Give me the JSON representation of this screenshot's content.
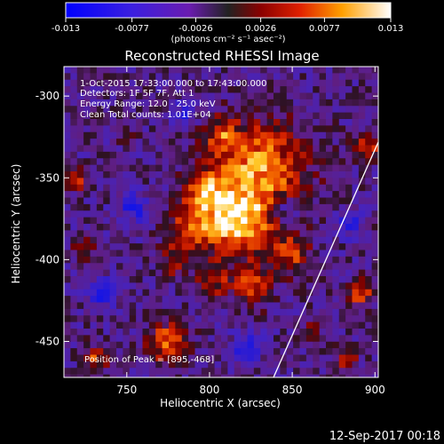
{
  "colorbar": {
    "tick_labels": [
      "-0.013",
      "-0.0077",
      "-0.0026",
      "0.0026",
      "0.0077",
      "0.013"
    ],
    "units_label": "(photons cm⁻² s⁻¹ asec⁻²)",
    "min": -0.013,
    "max": 0.013
  },
  "title": "Reconstructed RHESSI Image",
  "info": {
    "line1": "1-Oct-2015 17:33:00.000 to 17:43:00.000",
    "line2": "Detectors: 1F 5F 7F, Att 1",
    "line3": "Energy Range: 12.0 - 25.0 keV",
    "line4": "Clean    Total counts: 1.01E+04"
  },
  "peak_label": "Position of Peak = [895,-468]",
  "xaxis": {
    "label": "Heliocentric X (arcsec)",
    "range": [
      712,
      902
    ],
    "ticks": [
      750,
      800,
      850,
      900
    ],
    "tick_labels": [
      "750",
      "800",
      "850",
      "900"
    ]
  },
  "yaxis": {
    "label": "Heliocentric Y (arcsec)",
    "range": [
      -472,
      -282
    ],
    "ticks": [
      -300,
      -350,
      -400,
      -450
    ],
    "tick_labels": [
      "-300",
      "-350",
      "-400",
      "-450"
    ]
  },
  "timestamp": "12-Sep-2017 00:18",
  "colors": {
    "background": "#000000",
    "text": "#ffffff",
    "limb_line": "#ffffff"
  }
}
